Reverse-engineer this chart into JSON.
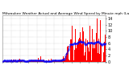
{
  "title": "Milwaukee Weather Actual and Average Wind Speed by Minute mph (Last 24 Hours)",
  "n_points": 1440,
  "bar_color": "#FF0000",
  "avg_color": "#0000FF",
  "background_color": "#FFFFFF",
  "plot_bg_color": "#FFFFFF",
  "grid_color": "#AAAAAA",
  "ylim": [
    0,
    15
  ],
  "ylabel_fontsize": 3.5,
  "title_fontsize": 3.2,
  "seed": 42
}
